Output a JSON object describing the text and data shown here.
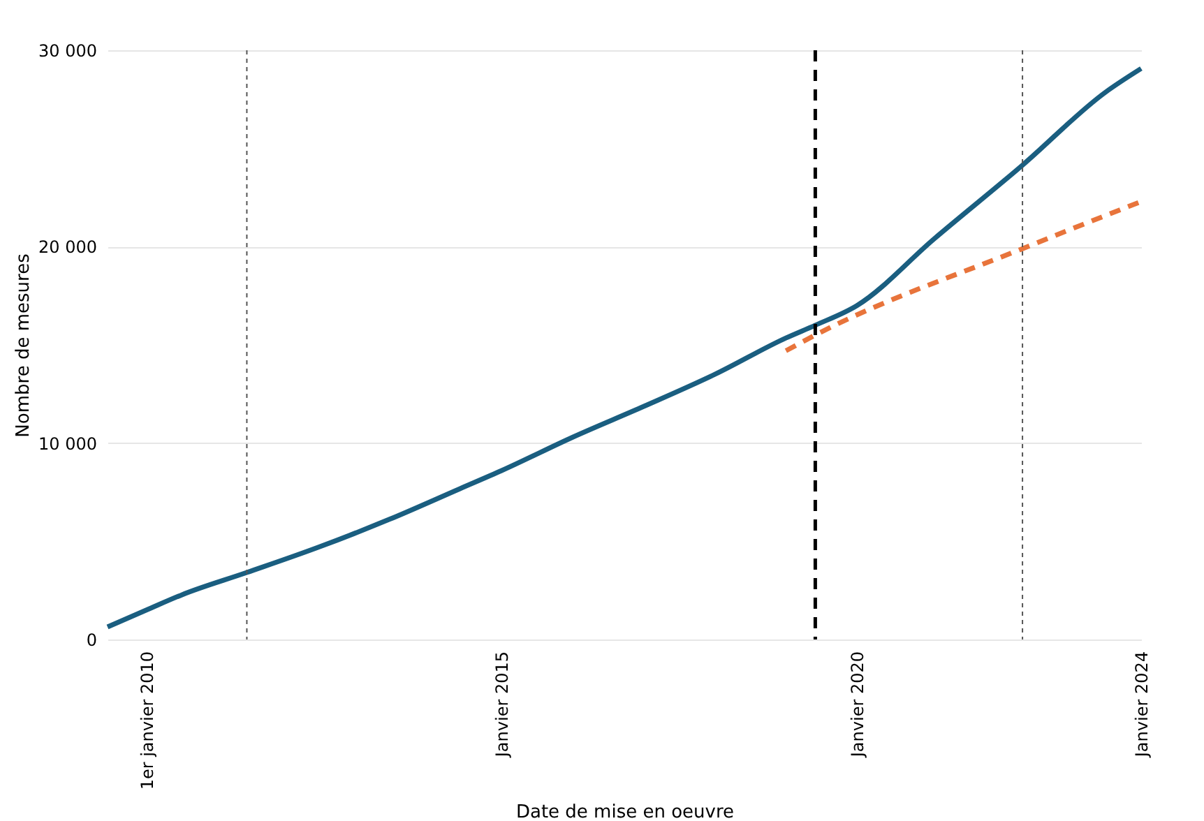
{
  "chart_data": {
    "type": "line",
    "xlabel": "Date de mise en oeuvre",
    "ylabel": "Nombre de mesures",
    "xlim": [
      "2009-06-15",
      "2024-01-01"
    ],
    "xticks": [
      {
        "value": "2010-01-01",
        "label": "1er janvier 2010"
      },
      {
        "value": "2015-01-01",
        "label": "Janvier 2015"
      },
      {
        "value": "2020-01-01",
        "label": "Janvier 2020"
      },
      {
        "value": "2024-01-01",
        "label": "Janvier 2024"
      }
    ],
    "ylim": [
      0,
      30000
    ],
    "yticks": [
      {
        "value": 0,
        "label": "0"
      },
      {
        "value": 10000,
        "label": "10 000"
      },
      {
        "value": 20000,
        "label": "20 000"
      },
      {
        "value": 30000,
        "label": "30 000"
      }
    ],
    "grid": "y",
    "series": [
      {
        "color": "#1a5e80",
        "line_style": "solid",
        "x": [
          "2009-06-15",
          "2010-01-01",
          "2010-07-01",
          "2011-06-01",
          "2012-06-01",
          "2013-06-01",
          "2014-06-01",
          "2015-01-01",
          "2016-01-01",
          "2017-01-01",
          "2018-01-01",
          "2019-01-01",
          "2019-06-01",
          "2020-01-01",
          "2021-02-01",
          "2022-05-01",
          "2023-07-01",
          "2024-01-01"
        ],
        "values": [
          640,
          1500,
          2270,
          3410,
          4690,
          6110,
          7680,
          8600,
          10300,
          11870,
          13500,
          15350,
          16000,
          17000,
          20400,
          24150,
          27860,
          29070
        ]
      },
      {
        "color": "#e8743b",
        "line_style": "dashed",
        "x": [
          "2019-01-01",
          "2019-06-01",
          "2022-05-01",
          "2024-01-01"
        ],
        "values": [
          14700,
          15500,
          19900,
          22300
        ]
      }
    ],
    "ref_lines": [
      {
        "axis": "x",
        "value": "2011-06-01",
        "color": "#555555",
        "line_style": "dotted"
      },
      {
        "axis": "x",
        "value": "2019-06-01",
        "color": "#000000",
        "line_style": "dashed"
      },
      {
        "axis": "x",
        "value": "2022-05-01",
        "color": "#555555",
        "line_style": "dotted"
      }
    ]
  }
}
